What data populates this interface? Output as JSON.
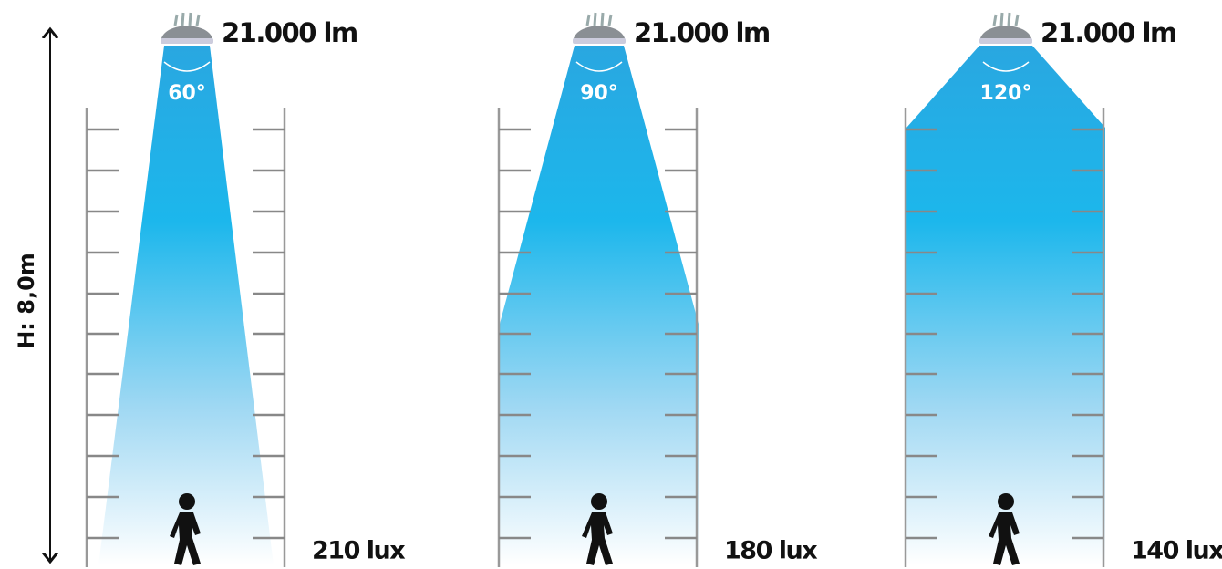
{
  "height_label": "H: 8,0m",
  "panels": [
    {
      "lumens": "21.000 lm",
      "angle": "60°",
      "illuminance": "210 lux"
    },
    {
      "lumens": "21.000 lm",
      "angle": "90°",
      "illuminance": "180 lux"
    },
    {
      "lumens": "21.000 lm",
      "angle": "120°",
      "illuminance": "140 lux"
    }
  ]
}
